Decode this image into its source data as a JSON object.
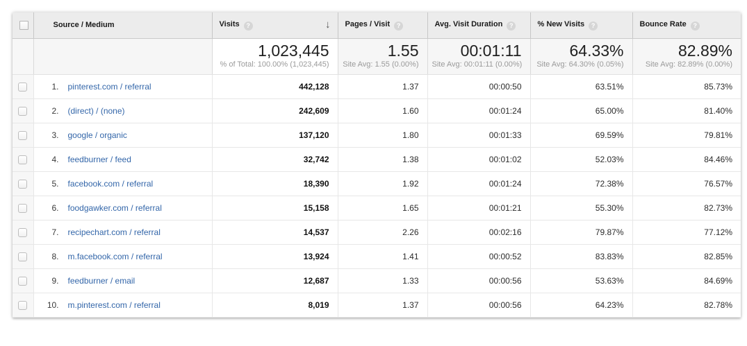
{
  "icons": {
    "help": "?",
    "sort_descending": "↓"
  },
  "colors": {
    "link_blue": "#3366a9",
    "header_bg": "#ececec",
    "summary_bg": "#f6f6f6",
    "row_border": "#e7e7e7"
  },
  "table": {
    "columns": [
      {
        "id": "source",
        "label": "Source / Medium"
      },
      {
        "id": "visits",
        "label": "Visits"
      },
      {
        "id": "pages",
        "label": "Pages / Visit"
      },
      {
        "id": "duration",
        "label": "Avg. Visit Duration"
      },
      {
        "id": "new_visits",
        "label": "% New Visits"
      },
      {
        "id": "bounce",
        "label": "Bounce Rate"
      }
    ],
    "sorted_column": "visits",
    "summary": {
      "visits": "1,023,445",
      "visits_sub": "% of Total: 100.00% (1,023,445)",
      "pages": "1.55",
      "pages_sub": "Site Avg: 1.55 (0.00%)",
      "duration": "00:01:11",
      "duration_sub": "Site Avg: 00:01:11 (0.00%)",
      "new_visits": "64.33%",
      "new_visits_sub": "Site Avg: 64.30% (0.05%)",
      "bounce": "82.89%",
      "bounce_sub": "Site Avg: 82.89% (0.00%)"
    },
    "rows": [
      {
        "num": "1.",
        "source": "pinterest.com / referral",
        "visits": "442,128",
        "pages": "1.37",
        "duration": "00:00:50",
        "new_visits": "63.51%",
        "bounce": "85.73%"
      },
      {
        "num": "2.",
        "source": "(direct) / (none)",
        "visits": "242,609",
        "pages": "1.60",
        "duration": "00:01:24",
        "new_visits": "65.00%",
        "bounce": "81.40%"
      },
      {
        "num": "3.",
        "source": "google / organic",
        "visits": "137,120",
        "pages": "1.80",
        "duration": "00:01:33",
        "new_visits": "69.59%",
        "bounce": "79.81%"
      },
      {
        "num": "4.",
        "source": "feedburner / feed",
        "visits": "32,742",
        "pages": "1.38",
        "duration": "00:01:02",
        "new_visits": "52.03%",
        "bounce": "84.46%"
      },
      {
        "num": "5.",
        "source": "facebook.com / referral",
        "visits": "18,390",
        "pages": "1.92",
        "duration": "00:01:24",
        "new_visits": "72.38%",
        "bounce": "76.57%"
      },
      {
        "num": "6.",
        "source": "foodgawker.com / referral",
        "visits": "15,158",
        "pages": "1.65",
        "duration": "00:01:21",
        "new_visits": "55.30%",
        "bounce": "82.73%"
      },
      {
        "num": "7.",
        "source": "recipechart.com / referral",
        "visits": "14,537",
        "pages": "2.26",
        "duration": "00:02:16",
        "new_visits": "79.87%",
        "bounce": "77.12%"
      },
      {
        "num": "8.",
        "source": "m.facebook.com / referral",
        "visits": "13,924",
        "pages": "1.41",
        "duration": "00:00:52",
        "new_visits": "83.83%",
        "bounce": "82.85%"
      },
      {
        "num": "9.",
        "source": "feedburner / email",
        "visits": "12,687",
        "pages": "1.33",
        "duration": "00:00:56",
        "new_visits": "53.63%",
        "bounce": "84.69%"
      },
      {
        "num": "10.",
        "source": "m.pinterest.com / referral",
        "visits": "8,019",
        "pages": "1.37",
        "duration": "00:00:56",
        "new_visits": "64.23%",
        "bounce": "82.78%"
      }
    ]
  }
}
